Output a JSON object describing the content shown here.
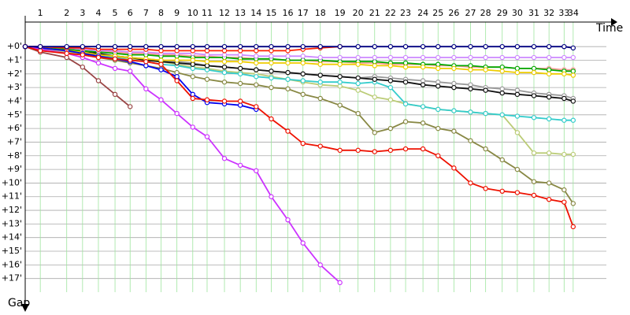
{
  "chart_data": {
    "type": "line",
    "x_label": "Time",
    "y_label": "Gap",
    "x": [
      0,
      1.0,
      2.75,
      3.8,
      4.85,
      5.95,
      6.95,
      8.0,
      9.0,
      10.05,
      11.1,
      12.05,
      13.2,
      14.25,
      15.3,
      16.3,
      17.4,
      18.4,
      19.55,
      20.85,
      22.05,
      23.15,
      24.2,
      25.2,
      26.35,
      27.35,
      28.4,
      29.5,
      30.5,
      31.6,
      32.6,
      33.7,
      34.7,
      35.7,
      36.3
    ],
    "xlim": [
      0,
      38.5
    ],
    "xticks": [
      {
        "value": 1.0,
        "label": "1"
      },
      {
        "value": 2.75,
        "label": "2"
      },
      {
        "value": 3.8,
        "label": "3"
      },
      {
        "value": 4.85,
        "label": "4"
      },
      {
        "value": 5.95,
        "label": "5"
      },
      {
        "value": 6.95,
        "label": "6"
      },
      {
        "value": 8.0,
        "label": "7"
      },
      {
        "value": 9.0,
        "label": "8"
      },
      {
        "value": 10.05,
        "label": "9"
      },
      {
        "value": 11.1,
        "label": "10"
      },
      {
        "value": 12.05,
        "label": "11"
      },
      {
        "value": 13.2,
        "label": "12"
      },
      {
        "value": 14.25,
        "label": "13"
      },
      {
        "value": 15.3,
        "label": "14"
      },
      {
        "value": 16.3,
        "label": "15"
      },
      {
        "value": 17.4,
        "label": "16"
      },
      {
        "value": 18.4,
        "label": "17"
      },
      {
        "value": 19.55,
        "label": "18"
      },
      {
        "value": 20.85,
        "label": "19"
      },
      {
        "value": 22.05,
        "label": "20"
      },
      {
        "value": 23.15,
        "label": "21"
      },
      {
        "value": 24.2,
        "label": "22"
      },
      {
        "value": 25.2,
        "label": "23"
      },
      {
        "value": 26.35,
        "label": "24"
      },
      {
        "value": 27.35,
        "label": "25"
      },
      {
        "value": 28.4,
        "label": "26"
      },
      {
        "value": 29.5,
        "label": "27"
      },
      {
        "value": 30.5,
        "label": "28"
      },
      {
        "value": 31.6,
        "label": "29"
      },
      {
        "value": 32.6,
        "label": "30"
      },
      {
        "value": 33.7,
        "label": "31"
      },
      {
        "value": 34.7,
        "label": "32"
      },
      {
        "value": 35.7,
        "label": "33"
      },
      {
        "value": 36.3,
        "label": "34"
      }
    ],
    "ylim": [
      -1.8,
      18
    ],
    "yticks": [
      {
        "value": 0,
        "label": "+0'"
      },
      {
        "value": 1,
        "label": "+1'"
      },
      {
        "value": 2,
        "label": "+2'"
      },
      {
        "value": 3,
        "label": "+3'"
      },
      {
        "value": 4,
        "label": "+4'"
      },
      {
        "value": 5,
        "label": "+5'"
      },
      {
        "value": 6,
        "label": "+6'"
      },
      {
        "value": 7,
        "label": "+7'"
      },
      {
        "value": 8,
        "label": "+8'"
      },
      {
        "value": 9,
        "label": "+9'"
      },
      {
        "value": 10,
        "label": "+10'"
      },
      {
        "value": 11,
        "label": "+11'"
      },
      {
        "value": 12,
        "label": "+12'"
      },
      {
        "value": 13,
        "label": "+13'"
      },
      {
        "value": 14,
        "label": "+14'"
      },
      {
        "value": 15,
        "label": "+15'"
      },
      {
        "value": 16,
        "label": "+16'"
      },
      {
        "value": 17,
        "label": "+17'"
      }
    ],
    "grid": true,
    "series": [
      {
        "color": "#888844",
        "values": [
          0,
          0.2,
          0.4,
          0.6,
          0.8,
          1.0,
          1.2,
          1.4,
          1.6,
          1.9,
          2.2,
          2.4,
          2.6,
          2.7,
          2.8,
          3.0,
          3.1,
          3.5,
          3.8,
          4.3,
          4.9,
          6.3,
          6.0,
          5.5,
          5.6,
          6.0,
          6.2,
          6.9,
          7.5,
          8.3,
          9.0,
          9.9,
          10.0,
          10.5,
          11.5
        ]
      },
      {
        "color": "#bbcc77",
        "values": [
          0,
          0.2,
          0.4,
          0.5,
          0.6,
          0.8,
          0.9,
          1.0,
          1.1,
          1.3,
          1.5,
          1.6,
          1.8,
          1.9,
          2.0,
          2.2,
          2.4,
          2.6,
          2.8,
          2.9,
          3.2,
          3.7,
          3.9,
          4.2,
          4.4,
          4.6,
          4.7,
          4.8,
          4.9,
          5.0,
          6.3,
          7.8,
          7.8,
          7.9,
          7.9
        ]
      },
      {
        "color": "#33cccc",
        "values": [
          0,
          0.1,
          0.3,
          0.5,
          0.7,
          0.8,
          1.0,
          1.1,
          1.3,
          1.4,
          1.6,
          1.7,
          1.9,
          2.0,
          2.2,
          2.3,
          2.4,
          2.5,
          2.6,
          2.6,
          2.7,
          2.6,
          3.0,
          4.2,
          4.4,
          4.6,
          4.7,
          4.8,
          4.9,
          5.0,
          5.1,
          5.2,
          5.3,
          5.4,
          5.4
        ]
      },
      {
        "color": "#999999",
        "values": [
          0,
          0.1,
          0.3,
          0.4,
          0.6,
          0.7,
          0.8,
          0.9,
          1.0,
          1.1,
          1.2,
          1.4,
          1.5,
          1.6,
          1.7,
          1.8,
          1.9,
          2.0,
          2.1,
          2.2,
          2.3,
          2.2,
          2.3,
          2.4,
          2.5,
          2.6,
          2.7,
          2.8,
          3.0,
          3.1,
          3.2,
          3.4,
          3.5,
          3.6,
          3.8
        ]
      },
      {
        "color": "#111111",
        "values": [
          0,
          0.1,
          0.2,
          0.4,
          0.5,
          0.7,
          0.8,
          1.0,
          1.1,
          1.2,
          1.3,
          1.4,
          1.5,
          1.6,
          1.7,
          1.8,
          1.9,
          2.0,
          2.1,
          2.2,
          2.3,
          2.4,
          2.5,
          2.6,
          2.8,
          2.9,
          3.0,
          3.1,
          3.2,
          3.4,
          3.5,
          3.6,
          3.7,
          3.8,
          4.0
        ]
      },
      {
        "color": "#ff9999",
        "values": [
          0,
          0.1,
          0.2,
          0.3,
          0.3,
          0.4,
          0.5,
          0.5,
          0.6,
          0.6,
          0.7,
          0.7,
          0.8,
          0.8,
          0.9,
          0.9,
          1.0,
          1.0,
          1.1,
          1.1,
          1.2,
          1.2,
          1.3,
          1.3,
          1.3,
          1.4,
          1.4,
          1.5,
          1.5,
          1.5,
          1.6,
          1.6,
          1.6,
          1.7,
          1.7
        ]
      },
      {
        "color": "#00aa00",
        "values": [
          0,
          0.1,
          0.2,
          0.3,
          0.4,
          0.5,
          0.6,
          0.6,
          0.7,
          0.7,
          0.8,
          0.8,
          0.8,
          0.9,
          0.9,
          0.9,
          1.0,
          1.0,
          1.0,
          1.1,
          1.1,
          1.1,
          1.2,
          1.2,
          1.3,
          1.3,
          1.4,
          1.4,
          1.5,
          1.5,
          1.6,
          1.6,
          1.7,
          1.8,
          1.8
        ]
      },
      {
        "color": "#eecc00",
        "values": [
          0,
          0.1,
          0.3,
          0.4,
          0.6,
          0.7,
          0.8,
          0.9,
          1.0,
          1.0,
          1.0,
          1.1,
          1.1,
          1.1,
          1.2,
          1.2,
          1.2,
          1.2,
          1.3,
          1.3,
          1.3,
          1.4,
          1.4,
          1.5,
          1.5,
          1.6,
          1.6,
          1.7,
          1.7,
          1.8,
          1.9,
          1.9,
          2.0,
          2.0,
          2.1
        ]
      },
      {
        "color": "#cc88ff",
        "values": [
          0,
          0,
          0.1,
          0.2,
          0.3,
          0.3,
          0.4,
          0.4,
          0.5,
          0.5,
          0.5,
          0.6,
          0.6,
          0.6,
          0.7,
          0.7,
          0.7,
          0.7,
          0.8,
          0.8,
          0.8,
          0.8,
          0.8,
          0.8,
          0.8,
          0.8,
          0.8,
          0.8,
          0.8,
          0.8,
          0.8,
          0.8,
          0.8,
          0.8,
          0.8
        ]
      },
      {
        "color": "#994444",
        "values": [
          0,
          0.4,
          0.8,
          1.5,
          2.5,
          3.5,
          4.4,
          null,
          null,
          null,
          null,
          null,
          null,
          null,
          null,
          null,
          null,
          null,
          null,
          null,
          null,
          null,
          null,
          null,
          null,
          null,
          null,
          null,
          null,
          null,
          null,
          null,
          null,
          null,
          null
        ]
      },
      {
        "color": "#0000ee",
        "values": [
          0,
          0.1,
          0.3,
          0.5,
          0.7,
          0.9,
          1.1,
          1.4,
          1.7,
          2.2,
          3.5,
          4.1,
          4.2,
          4.3,
          4.6,
          null,
          null,
          null,
          null,
          null,
          null,
          null,
          null,
          null,
          null,
          null,
          null,
          null,
          null,
          null,
          null,
          null,
          null,
          null,
          null
        ]
      },
      {
        "color": "#cc33ff",
        "values": [
          0,
          0.2,
          0.5,
          0.8,
          1.2,
          1.6,
          1.8,
          3.1,
          3.9,
          4.9,
          5.9,
          6.6,
          8.2,
          8.7,
          9.1,
          11.0,
          12.7,
          14.4,
          16.0,
          17.3,
          null,
          null,
          null,
          null,
          null,
          null,
          null,
          null,
          null,
          null,
          null,
          null,
          null,
          null,
          null
        ]
      },
      {
        "color": "#ee1100",
        "values": [
          0,
          0.3,
          0.5,
          0.6,
          0.8,
          0.9,
          1.0,
          1.1,
          1.3,
          2.5,
          3.8,
          3.9,
          4.0,
          4.0,
          4.4,
          5.3,
          6.2,
          7.1,
          7.3,
          7.6,
          7.6,
          7.7,
          7.6,
          7.5,
          7.5,
          8.0,
          8.9,
          10.0,
          10.4,
          10.6,
          10.7,
          10.9,
          11.2,
          11.4,
          13.2
        ]
      },
      {
        "color": "#ff2200",
        "values": [
          0,
          0,
          0.1,
          0.1,
          0.2,
          0.2,
          0.2,
          0.2,
          0.3,
          0.3,
          0.3,
          0.3,
          0.3,
          0.3,
          0.3,
          0.3,
          0.3,
          0.2,
          0.1,
          0.0,
          null,
          null,
          null,
          null,
          null,
          null,
          null,
          null,
          null,
          null,
          null,
          null,
          null,
          null,
          null
        ]
      },
      {
        "color": "#000080",
        "values": [
          0,
          0,
          0,
          0,
          0,
          0,
          0,
          0,
          0,
          0,
          0,
          0,
          0,
          0,
          0,
          0,
          0,
          0,
          0,
          0,
          0,
          0,
          0,
          0,
          0,
          0,
          0,
          0,
          0,
          0,
          0,
          0,
          0,
          0,
          0.1
        ]
      }
    ]
  }
}
